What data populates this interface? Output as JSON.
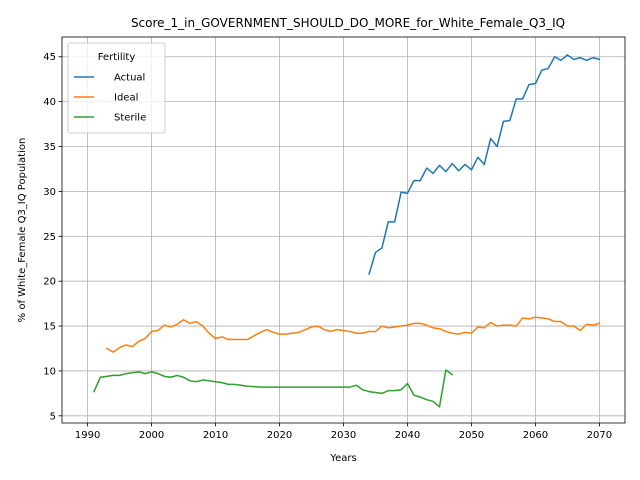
{
  "chart_data": {
    "type": "line",
    "title": "Score_1_in_GOVERNMENT_SHOULD_DO_MORE_for_White_Female_Q3_IQ",
    "xlabel": "Years",
    "ylabel": "% of White_Female Q3_IQ Population",
    "xlim": [
      1986,
      2074
    ],
    "ylim": [
      4.2,
      47.2
    ],
    "xticks": [
      1990,
      2000,
      2010,
      2020,
      2030,
      2040,
      2050,
      2060,
      2070
    ],
    "yticks": [
      5,
      10,
      15,
      20,
      25,
      30,
      35,
      40,
      45
    ],
    "grid": true,
    "legend": {
      "title": "Fertility",
      "location": "upper left"
    },
    "series": [
      {
        "name": "Actual",
        "color": "#1f77b4",
        "x": [
          2034,
          2035,
          2036,
          2037,
          2038,
          2039,
          2040,
          2041,
          2042,
          2043,
          2044,
          2045,
          2046,
          2047,
          2048,
          2049,
          2050,
          2051,
          2052,
          2053,
          2054,
          2055,
          2056,
          2057,
          2058,
          2059,
          2060,
          2061,
          2062,
          2063,
          2064,
          2065,
          2066,
          2067,
          2068,
          2069,
          2070
        ],
        "values": [
          20.8,
          23.2,
          23.7,
          26.6,
          26.6,
          29.9,
          29.8,
          31.2,
          31.2,
          32.6,
          32.0,
          32.9,
          32.2,
          33.1,
          32.3,
          33.0,
          32.4,
          33.8,
          33.0,
          35.9,
          35.0,
          37.8,
          37.9,
          40.3,
          40.3,
          41.9,
          42.0,
          43.5,
          43.7,
          45.0,
          44.6,
          45.2,
          44.7,
          44.9,
          44.6,
          44.9,
          44.7
        ]
      },
      {
        "name": "Ideal",
        "color": "#ff7f0e",
        "x": [
          1993,
          1994,
          1995,
          1996,
          1997,
          1998,
          1999,
          2000,
          2001,
          2002,
          2003,
          2004,
          2005,
          2006,
          2007,
          2008,
          2009,
          2010,
          2011,
          2012,
          2013,
          2014,
          2015,
          2016,
          2017,
          2018,
          2019,
          2020,
          2021,
          2022,
          2023,
          2024,
          2025,
          2026,
          2027,
          2028,
          2029,
          2030,
          2031,
          2032,
          2033,
          2034,
          2035,
          2036,
          2037,
          2038,
          2039,
          2040,
          2041,
          2042,
          2043,
          2044,
          2045,
          2046,
          2047,
          2048,
          2049,
          2050,
          2051,
          2052,
          2053,
          2054,
          2055,
          2056,
          2057,
          2058,
          2059,
          2060,
          2061,
          2062,
          2063,
          2064,
          2065,
          2066,
          2067,
          2068,
          2069,
          2070
        ],
        "values": [
          12.5,
          12.1,
          12.6,
          12.9,
          12.7,
          13.3,
          13.6,
          14.4,
          14.5,
          15.1,
          14.9,
          15.2,
          15.7,
          15.3,
          15.5,
          15.0,
          14.2,
          13.6,
          13.8,
          13.5,
          13.5,
          13.5,
          13.5,
          13.9,
          14.3,
          14.6,
          14.3,
          14.1,
          14.1,
          14.2,
          14.3,
          14.6,
          14.9,
          15.0,
          14.6,
          14.4,
          14.6,
          14.5,
          14.4,
          14.2,
          14.2,
          14.4,
          14.4,
          15.0,
          14.8,
          14.9,
          15.0,
          15.1,
          15.3,
          15.3,
          15.1,
          14.8,
          14.7,
          14.4,
          14.2,
          14.1,
          14.3,
          14.2,
          14.9,
          14.8,
          15.4,
          15.0,
          15.1,
          15.1,
          15.0,
          15.9,
          15.8,
          16.0,
          15.9,
          15.8,
          15.5,
          15.5,
          15.0,
          15.0,
          14.5,
          15.2,
          15.1,
          15.3
        ]
      },
      {
        "name": "Sterile",
        "color": "#2ca02c",
        "x": [
          1991,
          1992,
          1993,
          1994,
          1995,
          1996,
          1997,
          1998,
          1999,
          2000,
          2001,
          2002,
          2003,
          2004,
          2005,
          2006,
          2007,
          2008,
          2009,
          2010,
          2011,
          2012,
          2013,
          2014,
          2015,
          2016,
          2017,
          2018,
          2019,
          2020,
          2021,
          2022,
          2023,
          2024,
          2025,
          2026,
          2027,
          2028,
          2029,
          2030,
          2031,
          2032,
          2033,
          2034,
          2035,
          2036,
          2037,
          2038,
          2039,
          2040,
          2041,
          2042,
          2043,
          2044,
          2045,
          2046,
          2047
        ],
        "values": [
          7.7,
          9.3,
          9.4,
          9.5,
          9.5,
          9.7,
          9.8,
          9.9,
          9.7,
          9.9,
          9.7,
          9.4,
          9.3,
          9.5,
          9.3,
          8.9,
          8.8,
          9.0,
          8.9,
          8.8,
          8.7,
          8.5,
          8.5,
          8.4,
          8.3,
          8.25,
          8.2,
          8.2,
          8.2,
          8.2,
          8.2,
          8.2,
          8.2,
          8.2,
          8.2,
          8.2,
          8.2,
          8.2,
          8.2,
          8.2,
          8.2,
          8.4,
          7.9,
          7.7,
          7.6,
          7.5,
          7.8,
          7.8,
          7.9,
          8.6,
          7.3,
          7.1,
          6.8,
          6.6,
          6.0,
          10.1,
          9.6
        ]
      }
    ]
  }
}
